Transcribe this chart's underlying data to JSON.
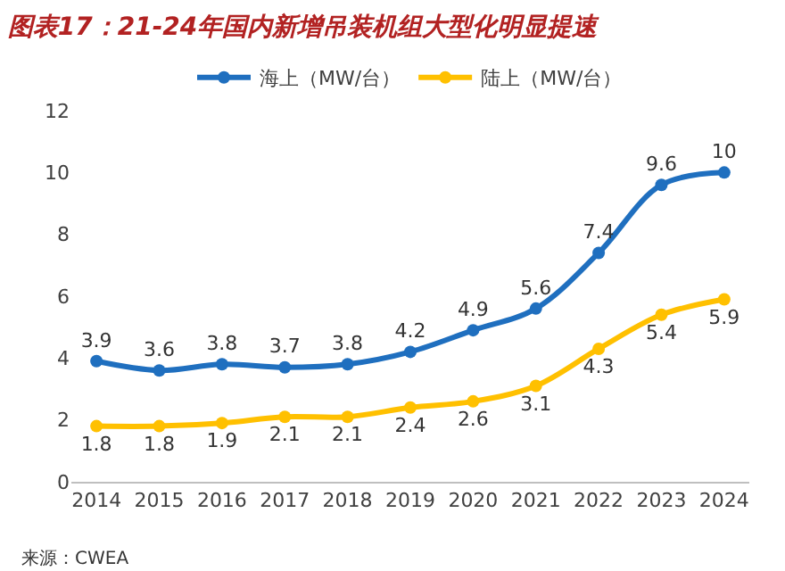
{
  "chart_data": {
    "type": "line",
    "title": "图表17：21-24年国内新增吊装机组大型化明显提速",
    "x": [
      2014,
      2015,
      2016,
      2017,
      2018,
      2019,
      2020,
      2021,
      2022,
      2023,
      2024
    ],
    "series": [
      {
        "name": "海上（MW/台）",
        "color": "#1f6fbf",
        "values": [
          3.9,
          3.6,
          3.8,
          3.7,
          3.8,
          4.2,
          4.9,
          5.6,
          7.4,
          9.6,
          10
        ]
      },
      {
        "name": "陆上（MW/台）",
        "color": "#ffc000",
        "values": [
          1.8,
          1.8,
          1.9,
          2.1,
          2.1,
          2.4,
          2.6,
          3.1,
          4.3,
          5.4,
          5.9
        ]
      }
    ],
    "xlim": [
      2013.6,
      2024.4
    ],
    "xticks": [
      2014,
      2015,
      2016,
      2017,
      2018,
      2019,
      2020,
      2021,
      2022,
      2023,
      2024
    ],
    "ylim": [
      0,
      12
    ],
    "yticks": [
      0,
      2,
      4,
      6,
      8,
      10,
      12
    ],
    "data_labels": true,
    "legend": "top",
    "marker": "circle",
    "line_style": "solid",
    "annotations": [
      "来源：CWEA"
    ]
  }
}
